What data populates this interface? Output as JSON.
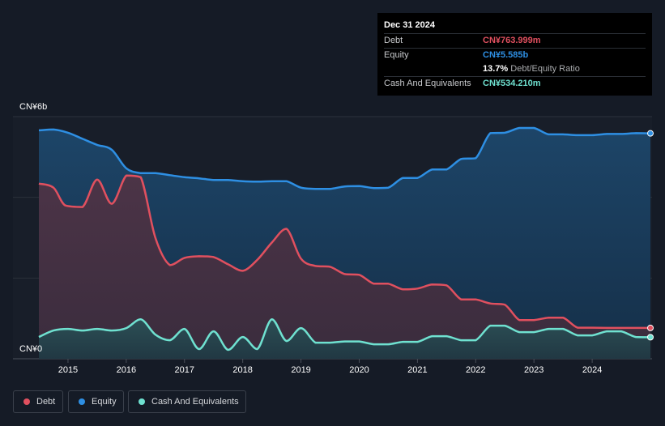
{
  "tooltip": {
    "date": "Dec 31 2024",
    "debt_label": "Debt",
    "debt_value": "CN¥763.999m",
    "equity_label": "Equity",
    "equity_value": "CN¥5.585b",
    "ratio_value": "13.7%",
    "ratio_label": "Debt/Equity Ratio",
    "cash_label": "Cash And Equivalents",
    "cash_value": "CN¥534.210m"
  },
  "legend": {
    "debt": "Debt",
    "equity": "Equity",
    "cash": "Cash And Equivalents"
  },
  "colors": {
    "debt": "#e0505f",
    "equity": "#2e8fe3",
    "cash": "#6fe1d0",
    "background": "#151b26"
  },
  "chart_data": {
    "type": "area",
    "y_top_label": "CN¥6b",
    "y_bottom_label": "CN¥0",
    "ylim": [
      0,
      6
    ],
    "xlim": [
      2014.5,
      2025.0
    ],
    "x_ticks": [
      "2015",
      "2016",
      "2017",
      "2018",
      "2019",
      "2020",
      "2021",
      "2022",
      "2023",
      "2024"
    ],
    "x_tick_values": [
      2015,
      2016,
      2017,
      2018,
      2019,
      2020,
      2021,
      2022,
      2023,
      2024
    ],
    "grid": true,
    "series": [
      {
        "name": "Equity",
        "unit": "CN¥b",
        "points": [
          [
            2014.5,
            5.66
          ],
          [
            2014.75,
            5.68
          ],
          [
            2015.0,
            5.6
          ],
          [
            2015.25,
            5.45
          ],
          [
            2015.5,
            5.3
          ],
          [
            2015.75,
            5.18
          ],
          [
            2016.0,
            4.72
          ],
          [
            2016.25,
            4.6
          ],
          [
            2016.5,
            4.6
          ],
          [
            2016.75,
            4.55
          ],
          [
            2017.0,
            4.5
          ],
          [
            2017.25,
            4.47
          ],
          [
            2017.5,
            4.43
          ],
          [
            2017.75,
            4.43
          ],
          [
            2018.0,
            4.4
          ],
          [
            2018.25,
            4.39
          ],
          [
            2018.5,
            4.4
          ],
          [
            2018.75,
            4.4
          ],
          [
            2019.0,
            4.24
          ],
          [
            2019.25,
            4.21
          ],
          [
            2019.5,
            4.21
          ],
          [
            2019.75,
            4.27
          ],
          [
            2020.0,
            4.28
          ],
          [
            2020.25,
            4.23
          ],
          [
            2020.5,
            4.24
          ],
          [
            2020.75,
            4.48
          ],
          [
            2021.0,
            4.48
          ],
          [
            2021.25,
            4.69
          ],
          [
            2021.5,
            4.69
          ],
          [
            2021.75,
            4.95
          ],
          [
            2022.0,
            4.97
          ],
          [
            2022.25,
            5.59
          ],
          [
            2022.5,
            5.6
          ],
          [
            2022.75,
            5.72
          ],
          [
            2023.0,
            5.72
          ],
          [
            2023.25,
            5.56
          ],
          [
            2023.5,
            5.56
          ],
          [
            2023.75,
            5.54
          ],
          [
            2024.0,
            5.54
          ],
          [
            2024.25,
            5.57
          ],
          [
            2024.5,
            5.57
          ],
          [
            2024.75,
            5.59
          ],
          [
            2025.0,
            5.585
          ]
        ]
      },
      {
        "name": "Debt",
        "unit": "CN¥b",
        "points": [
          [
            2014.5,
            4.34
          ],
          [
            2014.75,
            4.24
          ],
          [
            2014.95,
            3.8
          ],
          [
            2015.25,
            3.76
          ],
          [
            2015.5,
            4.44
          ],
          [
            2015.75,
            3.84
          ],
          [
            2016.0,
            4.54
          ],
          [
            2016.25,
            4.5
          ],
          [
            2016.5,
            3.0
          ],
          [
            2016.75,
            2.32
          ],
          [
            2017.0,
            2.5
          ],
          [
            2017.25,
            2.54
          ],
          [
            2017.5,
            2.52
          ],
          [
            2017.75,
            2.34
          ],
          [
            2018.0,
            2.18
          ],
          [
            2018.25,
            2.45
          ],
          [
            2018.5,
            2.88
          ],
          [
            2018.75,
            3.22
          ],
          [
            2019.0,
            2.48
          ],
          [
            2019.25,
            2.3
          ],
          [
            2019.5,
            2.28
          ],
          [
            2019.75,
            2.1
          ],
          [
            2020.0,
            2.08
          ],
          [
            2020.25,
            1.86
          ],
          [
            2020.5,
            1.86
          ],
          [
            2020.75,
            1.72
          ],
          [
            2021.0,
            1.74
          ],
          [
            2021.25,
            1.84
          ],
          [
            2021.5,
            1.82
          ],
          [
            2021.75,
            1.47
          ],
          [
            2022.0,
            1.47
          ],
          [
            2022.25,
            1.37
          ],
          [
            2022.5,
            1.34
          ],
          [
            2022.75,
            0.96
          ],
          [
            2023.0,
            0.96
          ],
          [
            2023.25,
            1.02
          ],
          [
            2023.5,
            1.02
          ],
          [
            2023.75,
            0.77
          ],
          [
            2024.0,
            0.77
          ],
          [
            2024.25,
            0.765
          ],
          [
            2024.5,
            0.765
          ],
          [
            2024.75,
            0.765
          ],
          [
            2025.0,
            0.764
          ]
        ]
      },
      {
        "name": "Cash And Equivalents",
        "unit": "CN¥b",
        "points": [
          [
            2014.5,
            0.54
          ],
          [
            2014.75,
            0.7
          ],
          [
            2015.0,
            0.74
          ],
          [
            2015.25,
            0.7
          ],
          [
            2015.5,
            0.74
          ],
          [
            2015.75,
            0.7
          ],
          [
            2016.0,
            0.76
          ],
          [
            2016.25,
            0.98
          ],
          [
            2016.5,
            0.6
          ],
          [
            2016.75,
            0.46
          ],
          [
            2017.0,
            0.74
          ],
          [
            2017.25,
            0.24
          ],
          [
            2017.5,
            0.68
          ],
          [
            2017.75,
            0.22
          ],
          [
            2018.0,
            0.54
          ],
          [
            2018.25,
            0.24
          ],
          [
            2018.5,
            0.98
          ],
          [
            2018.75,
            0.44
          ],
          [
            2019.0,
            0.76
          ],
          [
            2019.25,
            0.4
          ],
          [
            2019.5,
            0.4
          ],
          [
            2019.75,
            0.43
          ],
          [
            2020.0,
            0.43
          ],
          [
            2020.25,
            0.36
          ],
          [
            2020.5,
            0.36
          ],
          [
            2020.75,
            0.42
          ],
          [
            2021.0,
            0.42
          ],
          [
            2021.25,
            0.56
          ],
          [
            2021.5,
            0.56
          ],
          [
            2021.75,
            0.46
          ],
          [
            2022.0,
            0.46
          ],
          [
            2022.25,
            0.82
          ],
          [
            2022.5,
            0.82
          ],
          [
            2022.75,
            0.66
          ],
          [
            2023.0,
            0.66
          ],
          [
            2023.25,
            0.74
          ],
          [
            2023.5,
            0.74
          ],
          [
            2023.75,
            0.58
          ],
          [
            2024.0,
            0.58
          ],
          [
            2024.25,
            0.68
          ],
          [
            2024.5,
            0.68
          ],
          [
            2024.75,
            0.54
          ],
          [
            2025.0,
            0.534
          ]
        ]
      }
    ]
  }
}
